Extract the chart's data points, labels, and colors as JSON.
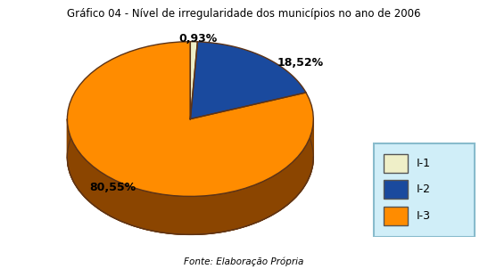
{
  "title": "Gráfico 04 - Nível de irregularidade dos municípios no ano de 2006",
  "source": "Fonte: Elaboração Própria",
  "labels": [
    "I-1",
    "I-2",
    "I-3"
  ],
  "values": [
    0.93,
    18.52,
    80.55
  ],
  "colors": [
    "#EFEFC8",
    "#1A4A9E",
    "#FF8C00"
  ],
  "dark_colors": [
    "#BFBF90",
    "#102E6A",
    "#8B4500"
  ],
  "edge_color": "#5C3317",
  "pct_labels": [
    "0,93%",
    "18,52%",
    "80,55%"
  ],
  "startangle": 90,
  "title_fontsize": 8.5,
  "label_fontsize": 9,
  "legend_fontsize": 9,
  "background_color": "#FFFFFF"
}
